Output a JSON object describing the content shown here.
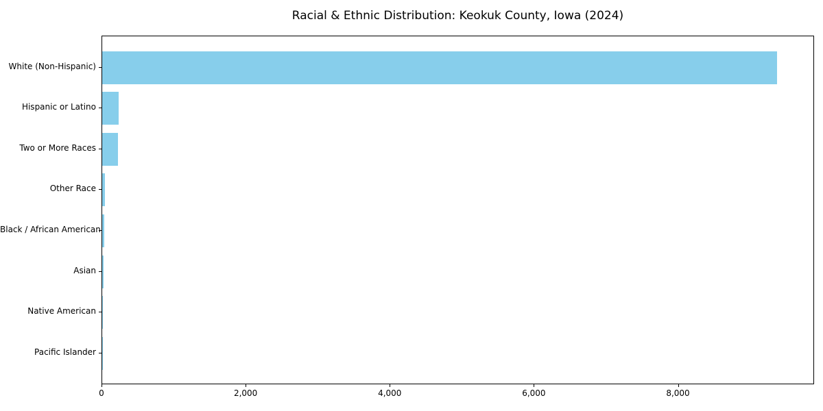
{
  "title": "Racial & Ethnic Distribution: Keokuk County, Iowa (2024)",
  "chart_data": {
    "type": "bar",
    "orientation": "horizontal",
    "title": "Racial & Ethnic Distribution: Keokuk County, Iowa (2024)",
    "categories": [
      "White (Non-Hispanic)",
      "Hispanic or Latino",
      "Two or More Races",
      "Other Race",
      "Black / African American",
      "Asian",
      "Native American",
      "Pacific Islander"
    ],
    "values": [
      9370,
      225,
      215,
      35,
      25,
      20,
      8,
      2
    ],
    "xlabel": "",
    "ylabel": "",
    "xlim": [
      0,
      9870
    ],
    "xticks": [
      0,
      2000,
      4000,
      6000,
      8000
    ],
    "bar_color": "#87CEEB",
    "axis_color": "#000000",
    "grid": false,
    "legend": null
  }
}
